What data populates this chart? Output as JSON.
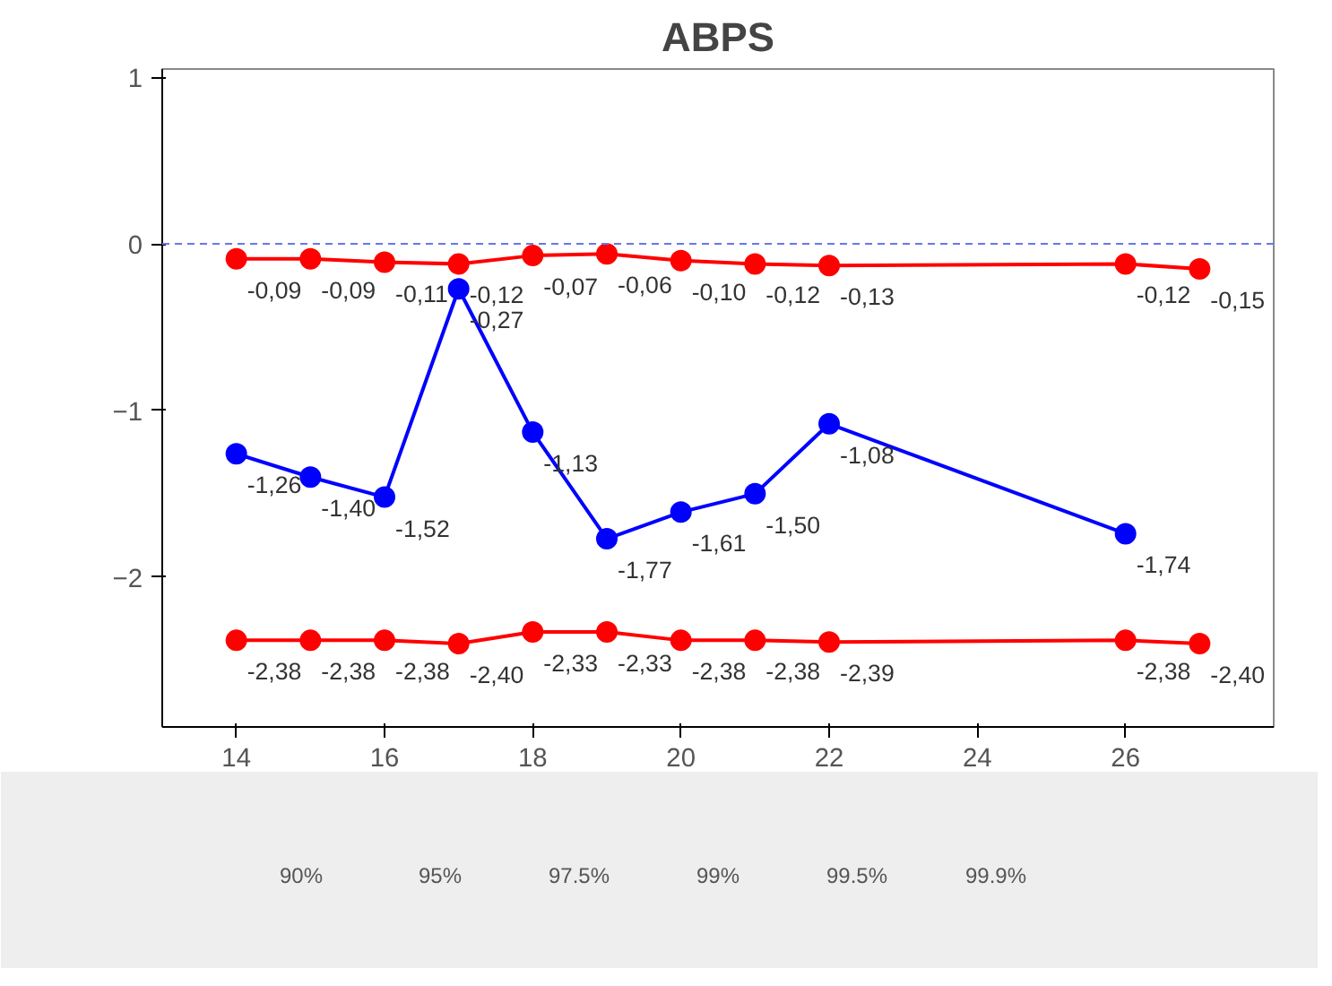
{
  "chart_data": {
    "type": "line",
    "title": "ABPS",
    "x": [
      14,
      15,
      16,
      17,
      18,
      19,
      20,
      21,
      22,
      26,
      27
    ],
    "series": [
      {
        "color": "#ff0000",
        "values": [
          -0.09,
          -0.09,
          -0.11,
          -0.12,
          -0.07,
          -0.06,
          -0.1,
          -0.12,
          -0.13,
          -0.12,
          -0.15
        ],
        "value_labels": [
          "-0,09",
          "-0,09",
          "-0,11",
          "-0,12",
          "-0,07",
          "-0,06",
          "-0,10",
          "-0,12",
          "-0,13",
          "-0,12",
          "-0,15"
        ]
      },
      {
        "color": "#0000ff",
        "x": [
          14,
          15,
          16,
          17,
          18,
          19,
          20,
          21,
          22,
          26
        ],
        "values": [
          -1.26,
          -1.4,
          -1.52,
          -0.27,
          -1.13,
          -1.77,
          -1.61,
          -1.5,
          -1.08,
          -1.74
        ],
        "value_labels": [
          "-1,26",
          "-1,40",
          "-1,52",
          "-0,27",
          "-1,13",
          "-1,77",
          "-1,61",
          "-1,50",
          "-1,08",
          "-1,74"
        ]
      },
      {
        "color": "#ff0000",
        "values": [
          -2.38,
          -2.38,
          -2.38,
          -2.4,
          -2.33,
          -2.33,
          -2.38,
          -2.38,
          -2.39,
          -2.38,
          -2.4
        ],
        "value_labels": [
          "-2,38",
          "-2,38",
          "-2,38",
          "-2,40",
          "-2,33",
          "-2,33",
          "-2,38",
          "-2,38",
          "-2,39",
          "-2,38",
          "-2,40"
        ]
      }
    ],
    "xlim": [
      13,
      28
    ],
    "xticks": [
      14,
      16,
      18,
      20,
      22,
      24,
      26
    ],
    "ylim": [
      -2.9,
      1.05
    ],
    "yticks": [
      1,
      0,
      -1,
      -2
    ],
    "ref_lines": [
      {
        "axis": "y",
        "value": 0,
        "color": "#6677ee",
        "line_style": "dashed"
      }
    ],
    "marker": "circle",
    "grid": false,
    "annotations": [
      "90%",
      "95%",
      "97.5%",
      "99%",
      "99.5%",
      "99.9%"
    ]
  }
}
